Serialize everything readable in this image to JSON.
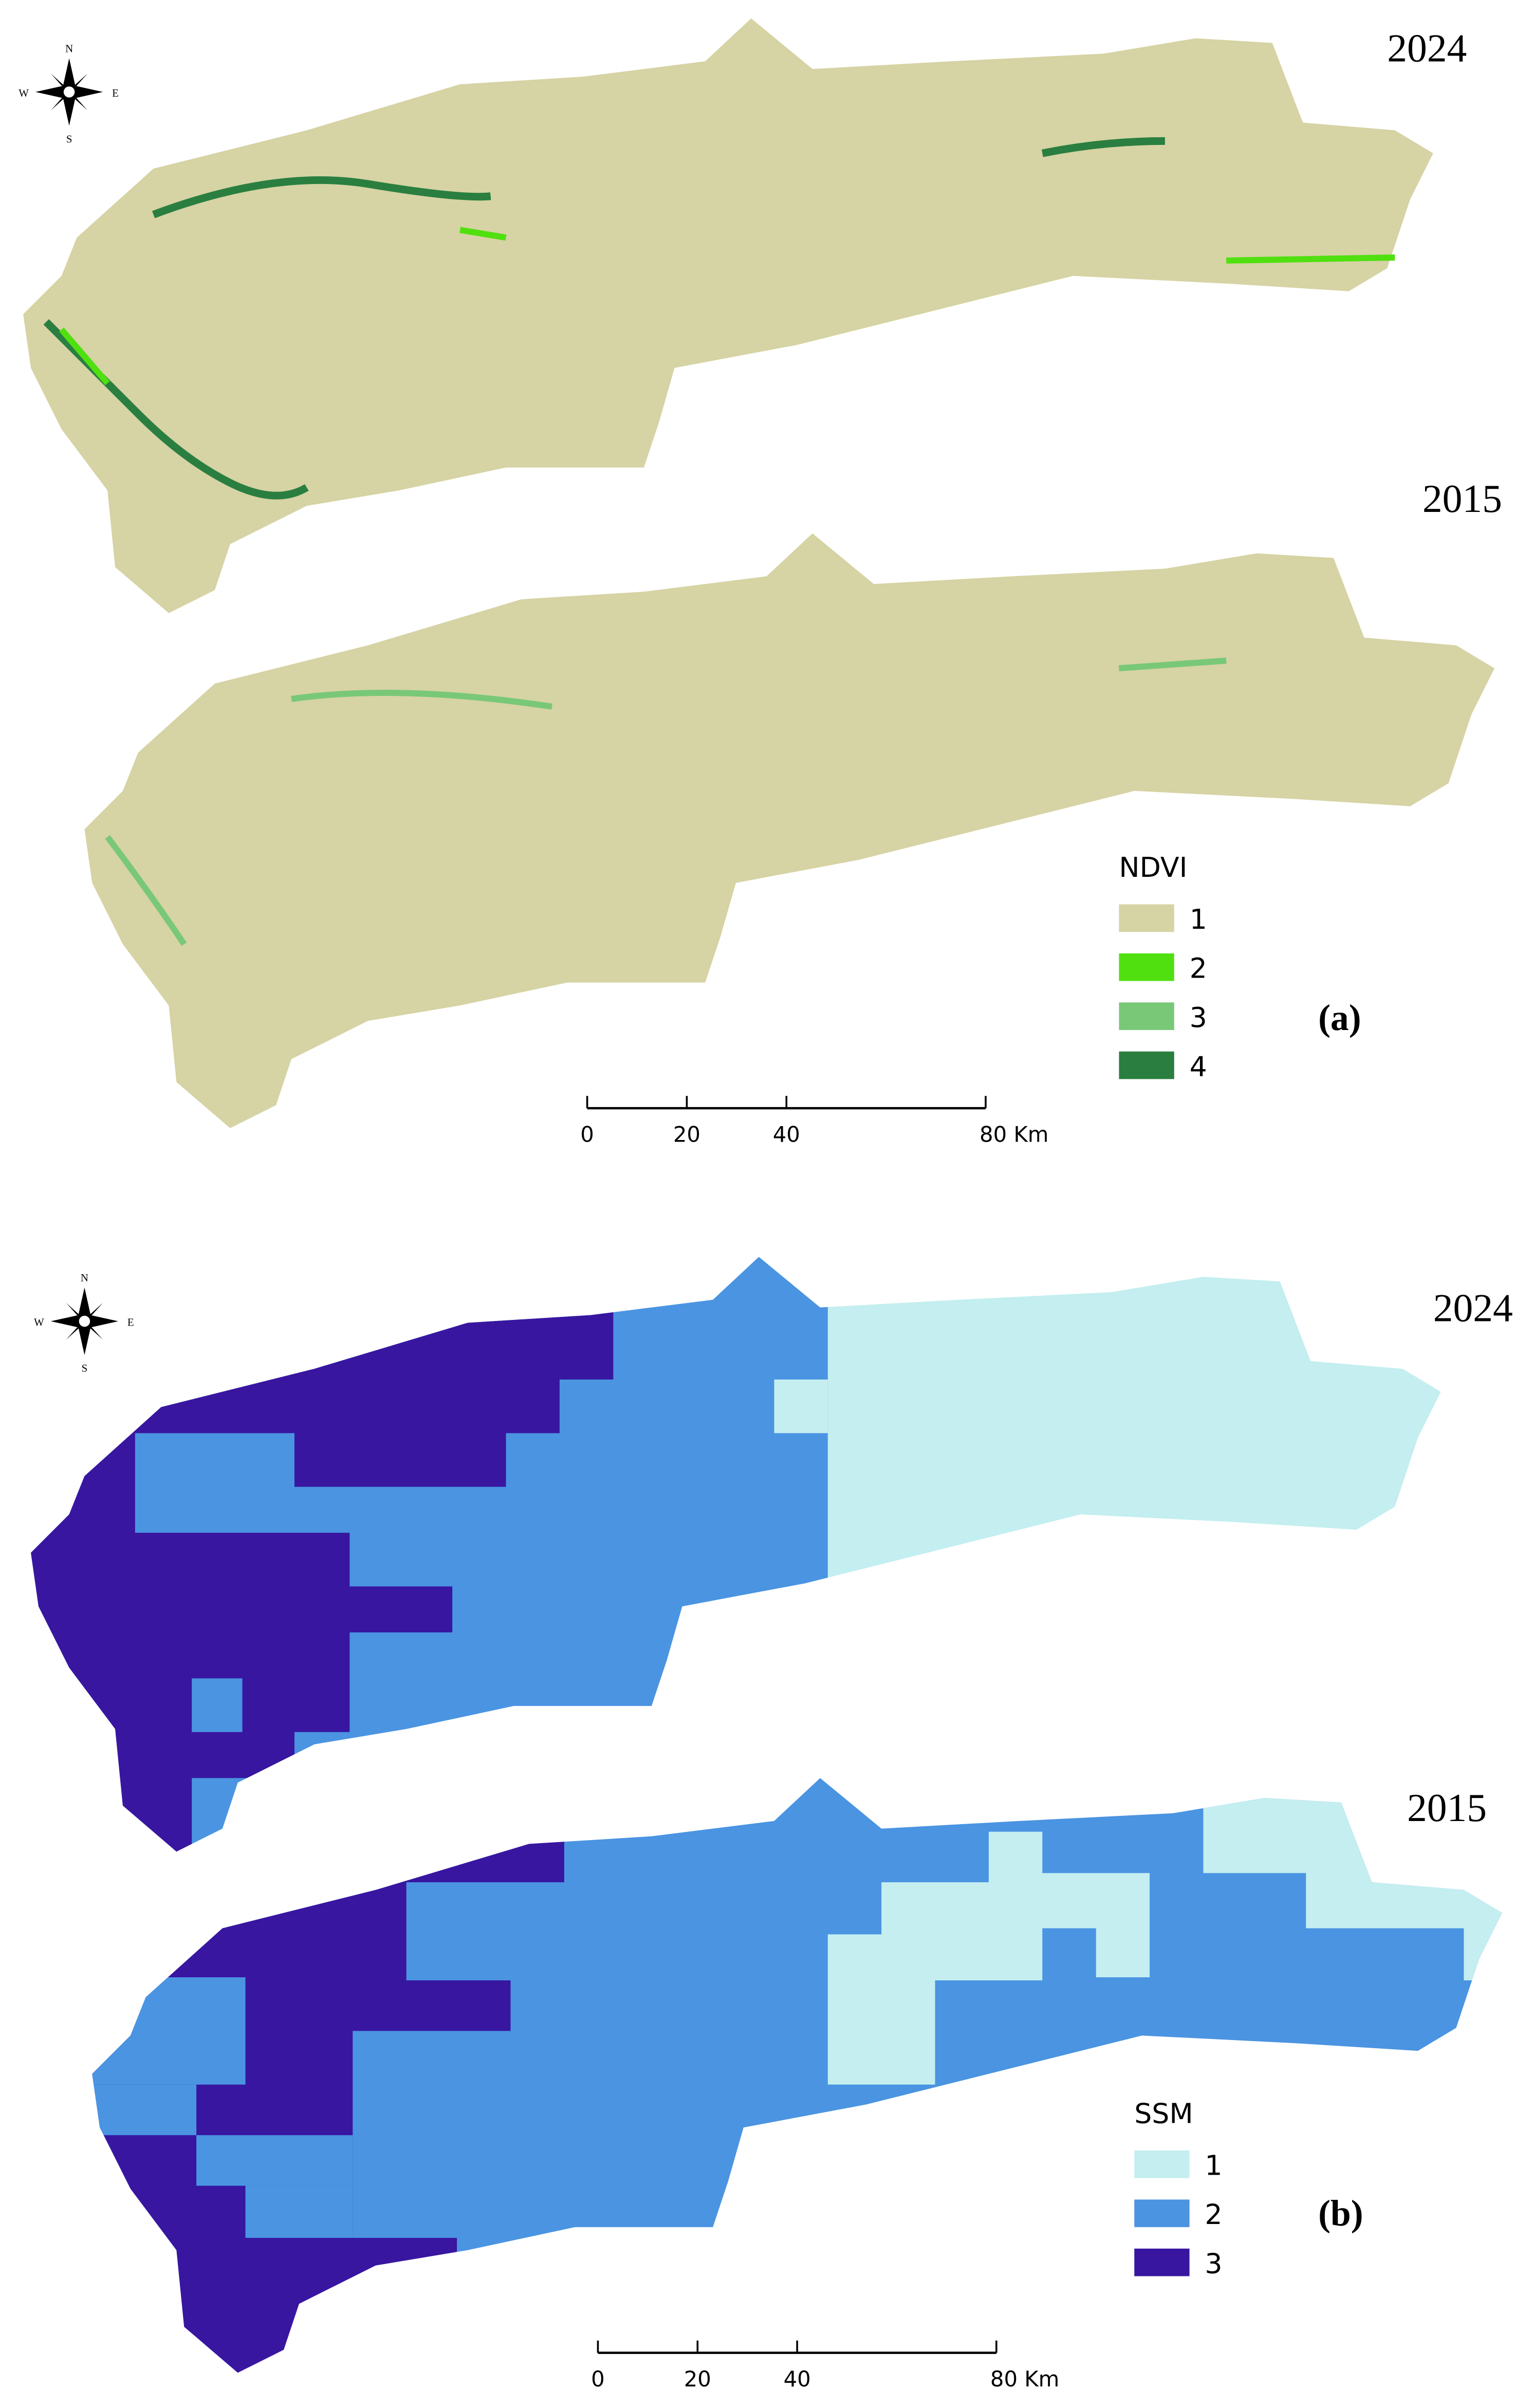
{
  "panels": [
    {
      "tag": "(a)",
      "maps": [
        {
          "year": "2024"
        },
        {
          "year": "2015"
        }
      ],
      "legend": {
        "title": "NDVI",
        "items": [
          {
            "label": "1",
            "color": "#d6d3a4"
          },
          {
            "label": "2",
            "color": "#50e010"
          },
          {
            "label": "3",
            "color": "#78c878"
          },
          {
            "label": "4",
            "color": "#2a7f40"
          }
        ]
      },
      "scale_bar": {
        "ticks": [
          0,
          20,
          40,
          {
            "value": 80,
            "label": "80 Km"
          }
        ]
      },
      "compass": {
        "n": "N",
        "s": "S",
        "e": "E",
        "w": "W"
      }
    },
    {
      "tag": "(b)",
      "maps": [
        {
          "year": "2024"
        },
        {
          "year": "2015"
        }
      ],
      "legend": {
        "title": "SSM",
        "items": [
          {
            "label": "1",
            "color": "#c4eef0"
          },
          {
            "label": "2",
            "color": "#4a94e2"
          },
          {
            "label": "3",
            "color": "#3816a0"
          }
        ]
      },
      "scale_bar": {
        "ticks": [
          0,
          20,
          40,
          {
            "value": 80,
            "label": "80 Km"
          }
        ]
      },
      "compass": {
        "n": "N",
        "s": "S",
        "e": "E",
        "w": "W"
      }
    }
  ]
}
